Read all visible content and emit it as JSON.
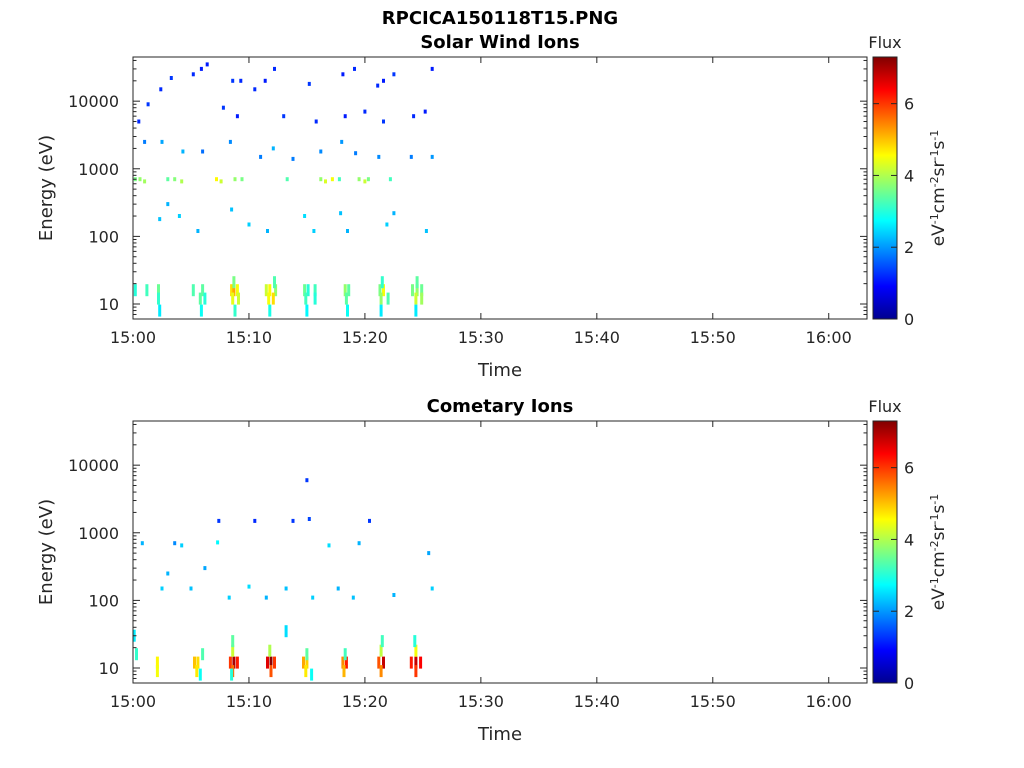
{
  "figure": {
    "title": "RPCICA150118T15.PNG"
  },
  "colors": {
    "axis": "#262626",
    "colormap": "jet"
  },
  "chart_data": [
    {
      "type": "heatmap",
      "title": "Solar Wind Ions",
      "xlabel": "Time",
      "ylabel": "Energy (eV)",
      "x_tick_labels": [
        "15:00",
        "15:10",
        "15:20",
        "15:30",
        "15:40",
        "15:50",
        "16:00"
      ],
      "x_tick_minutes": [
        0,
        10,
        20,
        30,
        40,
        50,
        60
      ],
      "xlim_minutes": [
        0,
        63.3
      ],
      "y_scale": "log",
      "y_tick_labels": [
        "10",
        "100",
        "1000",
        "10000"
      ],
      "y_tick_values": [
        10,
        100,
        1000,
        10000
      ],
      "ylim": [
        6,
        45000
      ],
      "colorbar": {
        "label": "Flux",
        "units": "eV-1cm-2sr-1s-1",
        "ticks": [
          0,
          2,
          4,
          6
        ],
        "range": [
          0,
          7.3
        ]
      },
      "data_extent_minutes": [
        0,
        26
      ],
      "cells": [
        [
          0.2,
          16,
          3.0
        ],
        [
          1.2,
          16,
          3.2
        ],
        [
          2.2,
          16,
          3.5
        ],
        [
          5.2,
          16,
          3.3
        ],
        [
          6.0,
          16,
          3.4
        ],
        [
          8.5,
          16,
          4.8
        ],
        [
          8.7,
          16,
          5.2
        ],
        [
          9.0,
          16,
          4.5
        ],
        [
          11.5,
          16,
          4.2
        ],
        [
          11.8,
          16,
          4.6
        ],
        [
          12.3,
          16,
          3.8
        ],
        [
          14.8,
          16,
          3.5
        ],
        [
          15.1,
          16,
          3.0
        ],
        [
          15.7,
          16,
          3.2
        ],
        [
          18.3,
          16,
          3.8
        ],
        [
          18.6,
          16,
          3.4
        ],
        [
          21.3,
          16,
          3.6
        ],
        [
          21.6,
          16,
          4.5
        ],
        [
          24.1,
          16,
          3.6
        ],
        [
          24.5,
          16,
          3.8
        ],
        [
          24.9,
          16,
          3.5
        ],
        [
          2.2,
          12,
          3.1
        ],
        [
          5.8,
          12,
          3.4
        ],
        [
          6.2,
          12,
          3.0
        ],
        [
          8.6,
          12,
          4.4
        ],
        [
          9.1,
          12,
          4.2
        ],
        [
          11.7,
          12,
          4.5
        ],
        [
          12.1,
          12,
          4.8
        ],
        [
          14.9,
          12,
          3.2
        ],
        [
          15.7,
          12,
          3.0
        ],
        [
          18.4,
          12,
          3.4
        ],
        [
          21.4,
          12,
          3.8
        ],
        [
          22.0,
          12,
          3.3
        ],
        [
          24.4,
          12,
          4.2
        ],
        [
          24.9,
          12,
          3.9
        ],
        [
          8.7,
          21,
          3.6
        ],
        [
          12.2,
          21,
          3.3
        ],
        [
          21.5,
          21,
          3.1
        ],
        [
          24.5,
          21,
          3.4
        ],
        [
          2.3,
          8,
          2.6
        ],
        [
          5.9,
          8,
          2.8
        ],
        [
          8.8,
          8,
          3.1
        ],
        [
          11.8,
          8,
          2.9
        ],
        [
          15.0,
          8,
          2.7
        ],
        [
          18.5,
          8,
          2.8
        ],
        [
          21.4,
          8,
          2.6
        ],
        [
          24.4,
          8,
          2.6
        ],
        [
          0.2,
          700,
          3.6
        ],
        [
          0.6,
          700,
          3.8
        ],
        [
          1.0,
          650,
          3.9
        ],
        [
          3.0,
          700,
          3.4
        ],
        [
          3.6,
          700,
          3.7
        ],
        [
          4.2,
          650,
          4.0
        ],
        [
          7.2,
          700,
          4.6
        ],
        [
          7.6,
          650,
          4.2
        ],
        [
          8.8,
          700,
          3.8
        ],
        [
          9.4,
          700,
          3.6
        ],
        [
          13.3,
          700,
          3.3
        ],
        [
          16.2,
          700,
          3.8
        ],
        [
          16.6,
          650,
          4.3
        ],
        [
          17.2,
          700,
          4.5
        ],
        [
          17.8,
          700,
          3.2
        ],
        [
          19.5,
          700,
          3.8
        ],
        [
          20.0,
          650,
          4.2
        ],
        [
          20.3,
          700,
          3.6
        ],
        [
          22.2,
          700,
          3.2
        ],
        [
          0.5,
          5000,
          1.2
        ],
        [
          1.3,
          9000,
          1.3
        ],
        [
          2.4,
          15000,
          1.2
        ],
        [
          3.3,
          22000,
          1.3
        ],
        [
          5.2,
          25000,
          1.2
        ],
        [
          5.9,
          30000,
          1.1
        ],
        [
          6.4,
          35000,
          1.1
        ],
        [
          8.6,
          20000,
          1.3
        ],
        [
          9.3,
          20000,
          1.2
        ],
        [
          10.5,
          15000,
          1.2
        ],
        [
          11.4,
          20000,
          1.1
        ],
        [
          12.2,
          30000,
          1.2
        ],
        [
          15.2,
          18000,
          1.3
        ],
        [
          18.1,
          25000,
          1.1
        ],
        [
          19.1,
          30000,
          1.2
        ],
        [
          21.1,
          17000,
          1.2
        ],
        [
          21.6,
          20000,
          1.1
        ],
        [
          22.5,
          25000,
          1.3
        ],
        [
          25.8,
          30000,
          1.1
        ],
        [
          7.8,
          8000,
          1.3
        ],
        [
          9.0,
          6000,
          1.1
        ],
        [
          13.0,
          6000,
          1.3
        ],
        [
          15.8,
          5000,
          1.2
        ],
        [
          18.3,
          6000,
          1.1
        ],
        [
          20.0,
          7000,
          1.2
        ],
        [
          21.6,
          5000,
          1.3
        ],
        [
          24.2,
          6000,
          1.2
        ],
        [
          25.2,
          7000,
          1.1
        ],
        [
          1.0,
          2500,
          1.8
        ],
        [
          2.5,
          2500,
          2.1
        ],
        [
          4.3,
          1800,
          2.2
        ],
        [
          6.0,
          1800,
          1.7
        ],
        [
          8.4,
          2500,
          1.9
        ],
        [
          11.0,
          1500,
          1.8
        ],
        [
          12.1,
          2000,
          2.2
        ],
        [
          13.8,
          1400,
          1.8
        ],
        [
          16.2,
          1800,
          1.9
        ],
        [
          18.0,
          2500,
          2.0
        ],
        [
          19.2,
          1700,
          1.8
        ],
        [
          21.2,
          1500,
          1.9
        ],
        [
          24.0,
          1500,
          1.8
        ],
        [
          25.8,
          1500,
          2.0
        ],
        [
          2.3,
          180,
          2.3
        ],
        [
          3.0,
          300,
          2.2
        ],
        [
          4.0,
          200,
          2.4
        ],
        [
          5.6,
          120,
          2.2
        ],
        [
          8.5,
          250,
          2.3
        ],
        [
          10.0,
          150,
          2.4
        ],
        [
          11.6,
          120,
          2.2
        ],
        [
          14.8,
          200,
          2.5
        ],
        [
          15.6,
          120,
          2.4
        ],
        [
          17.9,
          220,
          2.3
        ],
        [
          18.5,
          120,
          2.2
        ],
        [
          21.9,
          150,
          2.4
        ],
        [
          22.5,
          220,
          2.2
        ],
        [
          25.3,
          120,
          2.3
        ]
      ]
    },
    {
      "type": "heatmap",
      "title": "Cometary Ions",
      "xlabel": "Time",
      "ylabel": "Energy (eV)",
      "x_tick_labels": [
        "15:00",
        "15:10",
        "15:20",
        "15:30",
        "15:40",
        "15:50",
        "16:00"
      ],
      "x_tick_minutes": [
        0,
        10,
        20,
        30,
        40,
        50,
        60
      ],
      "xlim_minutes": [
        0,
        63.3
      ],
      "y_scale": "log",
      "y_tick_labels": [
        "10",
        "100",
        "1000",
        "10000"
      ],
      "y_tick_values": [
        10,
        100,
        1000,
        10000
      ],
      "ylim": [
        6,
        45000
      ],
      "colorbar": {
        "label": "Flux",
        "units": "eV-1cm-2sr-1s-1",
        "ticks": [
          0,
          2,
          4,
          6
        ],
        "range": [
          0,
          7.3
        ]
      },
      "data_extent_minutes": [
        0,
        26
      ],
      "cells": [
        [
          2.1,
          12,
          4.6
        ],
        [
          2.1,
          9,
          4.5
        ],
        [
          5.3,
          12,
          5.0
        ],
        [
          5.6,
          12,
          4.8
        ],
        [
          5.5,
          9,
          4.7
        ],
        [
          8.4,
          12,
          6.0
        ],
        [
          8.7,
          12,
          7.0
        ],
        [
          9.0,
          12,
          6.2
        ],
        [
          8.6,
          9,
          5.6
        ],
        [
          11.6,
          12,
          6.6
        ],
        [
          11.9,
          12,
          7.2
        ],
        [
          12.2,
          12,
          6.0
        ],
        [
          11.9,
          9,
          5.8
        ],
        [
          14.7,
          12,
          5.2
        ],
        [
          15.0,
          12,
          4.9
        ],
        [
          14.9,
          9,
          4.7
        ],
        [
          18.1,
          12,
          5.4
        ],
        [
          18.4,
          12,
          6.2
        ],
        [
          18.2,
          9,
          5.1
        ],
        [
          21.2,
          12,
          5.8
        ],
        [
          21.6,
          12,
          6.8
        ],
        [
          21.4,
          9,
          5.4
        ],
        [
          24.0,
          12,
          6.2
        ],
        [
          24.4,
          12,
          6.8
        ],
        [
          24.8,
          12,
          6.4
        ],
        [
          24.4,
          9,
          6.0
        ],
        [
          8.6,
          18,
          4.2
        ],
        [
          11.8,
          18,
          4.0
        ],
        [
          21.4,
          18,
          4.1
        ],
        [
          24.4,
          18,
          4.5
        ],
        [
          0.3,
          16,
          3.1
        ],
        [
          6.0,
          16,
          3.3
        ],
        [
          15.0,
          16,
          3.4
        ],
        [
          18.3,
          16,
          3.2
        ],
        [
          8.6,
          25,
          3.4
        ],
        [
          21.5,
          25,
          3.2
        ],
        [
          24.3,
          25,
          3.0
        ],
        [
          0.1,
          30,
          2.6
        ],
        [
          13.2,
          35,
          2.5
        ],
        [
          5.8,
          8,
          2.8
        ],
        [
          8.5,
          8,
          3.0
        ],
        [
          15.4,
          8,
          2.8
        ],
        [
          0.8,
          700,
          2.2
        ],
        [
          3.6,
          700,
          1.9
        ],
        [
          4.2,
          650,
          2.4
        ],
        [
          7.3,
          720,
          2.7
        ],
        [
          7.4,
          1500,
          1.3
        ],
        [
          10.5,
          1500,
          1.2
        ],
        [
          13.8,
          1500,
          1.3
        ],
        [
          15.2,
          1600,
          1.4
        ],
        [
          15.0,
          6000,
          1.3
        ],
        [
          16.9,
          650,
          2.5
        ],
        [
          19.5,
          700,
          2.2
        ],
        [
          20.4,
          1500,
          1.3
        ],
        [
          25.5,
          500,
          2.1
        ],
        [
          2.5,
          150,
          2.4
        ],
        [
          3.0,
          250,
          2.2
        ],
        [
          5.0,
          150,
          2.3
        ],
        [
          6.2,
          300,
          2.1
        ],
        [
          8.3,
          110,
          2.4
        ],
        [
          10.0,
          160,
          2.5
        ],
        [
          11.5,
          110,
          2.2
        ],
        [
          13.2,
          150,
          2.3
        ],
        [
          15.5,
          110,
          2.4
        ],
        [
          17.7,
          150,
          2.2
        ],
        [
          19.0,
          110,
          2.3
        ],
        [
          22.5,
          120,
          2.2
        ],
        [
          25.8,
          150,
          2.4
        ]
      ]
    }
  ]
}
